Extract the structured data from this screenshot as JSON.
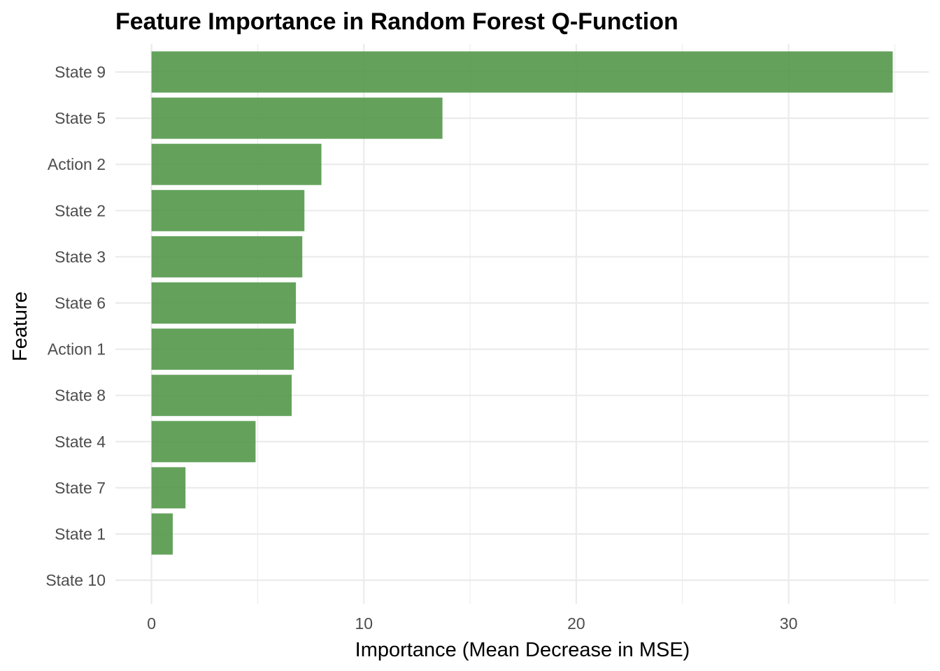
{
  "chart_data": {
    "type": "bar",
    "orientation": "horizontal",
    "title": "Feature Importance in Random Forest Q-Function",
    "xlabel": "Importance (Mean Decrease in MSE)",
    "ylabel": "Feature",
    "categories": [
      "State 9",
      "State 5",
      "Action 2",
      "State 2",
      "State 3",
      "State 6",
      "Action 1",
      "State 8",
      "State 4",
      "State 7",
      "State 1",
      "State 10"
    ],
    "values": [
      34.9,
      13.7,
      8.0,
      7.2,
      7.1,
      6.8,
      6.7,
      6.6,
      4.9,
      1.6,
      1.0,
      0.0
    ],
    "xlim": [
      -1.7,
      36.6
    ],
    "xticks": [
      0,
      10,
      20,
      30
    ],
    "xtick_labels": [
      "0",
      "10",
      "20",
      "30"
    ],
    "grid": true,
    "legend": "none",
    "bar_color": "#4f9545",
    "bar_opacity": 0.88
  }
}
